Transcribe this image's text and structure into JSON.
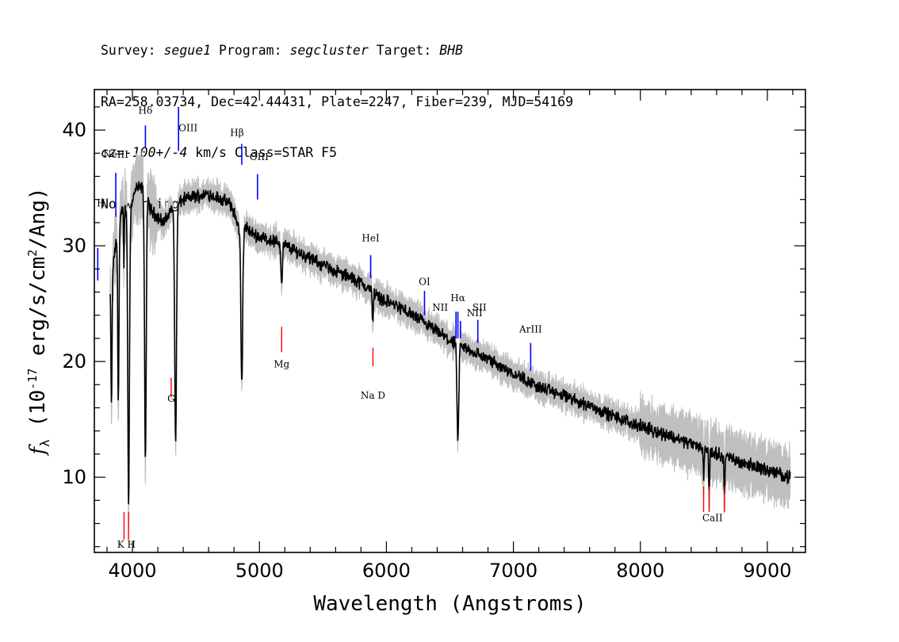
{
  "header": {
    "survey_label": "Survey: ",
    "survey_value": "segue1",
    "program_label": " Program: ",
    "program_value": "segcluster",
    "target_label": " Target: ",
    "target_value": "BHB",
    "line2": "RA=258.03734, Dec=42.44431, Plate=2247, Fiber=239, MJD=54169",
    "cz_label": "cz=",
    "cz_value": "-100+/-4",
    "cz_rest": " km/s Class=STAR F5",
    "line4": "No warnings."
  },
  "chart_data": {
    "type": "line",
    "xlabel": "Wavelength (Angstroms)",
    "ylabel_prefix": "f",
    "ylabel_sub": "λ",
    "ylabel_unit_pre": " (10",
    "ylabel_unit_exp": "-17",
    "ylabel_unit_mid": " erg/s/cm",
    "ylabel_unit_exp2": "2",
    "ylabel_unit_post": "/Ang)",
    "xlim": [
      3700,
      9300
    ],
    "ylim": [
      3.5,
      43.5
    ],
    "x_ticks": [
      4000,
      5000,
      6000,
      7000,
      8000,
      9000
    ],
    "x_tick_labels": [
      "4000",
      "5000",
      "6000",
      "7000",
      "8000",
      "9000"
    ],
    "y_ticks": [
      10,
      20,
      30,
      40
    ],
    "y_tick_labels": [
      "10",
      "20",
      "30",
      "40"
    ],
    "continuum": [
      [
        3825,
        26.5
      ],
      [
        3880,
        31.0
      ],
      [
        3920,
        33.0
      ],
      [
        3980,
        33.2
      ],
      [
        4030,
        35.0
      ],
      [
        4080,
        35.0
      ],
      [
        4150,
        33.0
      ],
      [
        4250,
        32.0
      ],
      [
        4300,
        33.0
      ],
      [
        4400,
        34.0
      ],
      [
        4500,
        34.3
      ],
      [
        4600,
        34.5
      ],
      [
        4700,
        34.0
      ],
      [
        4780,
        33.5
      ],
      [
        4840,
        31.5
      ],
      [
        4900,
        31.5
      ],
      [
        4950,
        31.0
      ],
      [
        5050,
        30.6
      ],
      [
        5150,
        30.3
      ],
      [
        5300,
        29.5
      ],
      [
        5450,
        28.6
      ],
      [
        5600,
        27.8
      ],
      [
        5750,
        27.1
      ],
      [
        5850,
        26.4
      ],
      [
        5950,
        25.5
      ],
      [
        6100,
        24.7
      ],
      [
        6250,
        23.7
      ],
      [
        6350,
        22.9
      ],
      [
        6450,
        22.2
      ],
      [
        6500,
        21.8
      ],
      [
        6650,
        21.0
      ],
      [
        6800,
        20.2
      ],
      [
        7000,
        19.0
      ],
      [
        7200,
        17.8
      ],
      [
        7400,
        17.0
      ],
      [
        7600,
        16.2
      ],
      [
        7800,
        15.2
      ],
      [
        8000,
        14.4
      ],
      [
        8200,
        13.7
      ],
      [
        8400,
        12.9
      ],
      [
        8600,
        12.0
      ],
      [
        8800,
        11.3
      ],
      [
        9000,
        10.6
      ],
      [
        9180,
        10.0
      ]
    ],
    "absorption_features": [
      {
        "center": 3835,
        "depth": 11.5,
        "width": 6
      },
      {
        "center": 3889,
        "depth": 14.5,
        "width": 7
      },
      {
        "center": 3933,
        "depth": 5.0,
        "width": 3
      },
      {
        "center": 3970,
        "depth": 25.5,
        "width": 9
      },
      {
        "center": 4102,
        "depth": 23.0,
        "width": 9
      },
      {
        "center": 4340,
        "depth": 20.5,
        "width": 10
      },
      {
        "center": 4861,
        "depth": 13.5,
        "width": 10
      },
      {
        "center": 5175,
        "depth": 3.5,
        "width": 8
      },
      {
        "center": 5892,
        "depth": 2.5,
        "width": 6
      },
      {
        "center": 6563,
        "depth": 8.5,
        "width": 10
      },
      {
        "center": 8498,
        "depth": 2.5,
        "width": 4
      },
      {
        "center": 8542,
        "depth": 3.5,
        "width": 5
      },
      {
        "center": 8662,
        "depth": 3.5,
        "width": 5
      }
    ],
    "emission_lines": [
      {
        "name": "H",
        "label_html": "H",
        "wavelength": 3727,
        "label_y": 33.4,
        "label_dx": 4,
        "y0": 29.8,
        "y1": 27.0
      },
      {
        "name": "NeIII",
        "label_html": "NeIII",
        "wavelength": 3869,
        "label_y": 37.6,
        "label_dx": 0,
        "y0": 36.3,
        "y1": 32.5
      },
      {
        "name": "Hdelta",
        "label_html": "Hδ",
        "wavelength": 4102,
        "label_y": 41.4,
        "label_dx": 0,
        "y0": 40.4,
        "y1": 38.5
      },
      {
        "name": "OIII",
        "label_html": "OIII",
        "wavelength": 4363,
        "label_y": 39.9,
        "label_dx": 12,
        "y0": 42.0,
        "y1": 38.2
      },
      {
        "name": "Hbeta",
        "label_html": "Hβ",
        "wavelength": 4861,
        "label_y": 39.5,
        "label_dx": -6,
        "y0": 38.8,
        "y1": 37.0
      },
      {
        "name": "OIII",
        "label_html": "OIII",
        "wavelength": 4985,
        "label_y": 37.4,
        "label_dx": 2,
        "y0": 36.2,
        "y1": 34.0
      },
      {
        "name": "HeI",
        "label_html": "HeI",
        "wavelength": 5876,
        "label_y": 30.4,
        "label_dx": 0,
        "y0": 29.2,
        "y1": 27.2
      },
      {
        "name": "OI",
        "label_html": "OI",
        "wavelength": 6300,
        "label_y": 26.6,
        "label_dx": 0,
        "y0": 26.1,
        "y1": 24.0
      },
      {
        "name": "NII",
        "label_html": "NII",
        "wavelength": 6548,
        "label_y": 24.4,
        "label_dx": -20,
        "y0": 24.3,
        "y1": 22.0
      },
      {
        "name": "Halpha",
        "label_html": "Hα",
        "wavelength": 6563,
        "label_y": 25.2,
        "label_dx": 0,
        "y0": 24.3,
        "y1": 22.0
      },
      {
        "name": "NII",
        "label_html": "NII",
        "wavelength": 6583,
        "label_y": 23.9,
        "label_dx": 18,
        "y0": 23.5,
        "y1": 22.0
      },
      {
        "name": "SII",
        "label_html": "SII",
        "wavelength": 6720,
        "label_y": 24.4,
        "label_dx": 2,
        "y0": 23.6,
        "y1": 21.6
      },
      {
        "name": "ArIII",
        "label_html": "ArIII",
        "wavelength": 7136,
        "label_y": 22.5,
        "label_dx": 0,
        "y0": 21.6,
        "y1": 19.2
      }
    ],
    "absorption_markers": [
      {
        "name": "KH",
        "label": "K H",
        "lines": [
          3934,
          3969
        ],
        "label_x": 3952,
        "label_y": 3.9,
        "y0": 7.0,
        "y1": 4.6
      },
      {
        "name": "G",
        "label": "G",
        "lines": [
          4305
        ],
        "label_x": 4305,
        "label_y": 16.5,
        "y0": 18.6,
        "y1": 16.9
      },
      {
        "name": "Mg",
        "label": "Mg",
        "lines": [
          5175
        ],
        "label_x": 5175,
        "label_y": 19.5,
        "y0": 23.0,
        "y1": 20.8
      },
      {
        "name": "NaD",
        "label": "Na  D",
        "lines": [
          5894
        ],
        "label_x": 5894,
        "label_y": 16.8,
        "y0": 21.2,
        "y1": 19.6
      },
      {
        "name": "CaII",
        "label": "CaII",
        "lines": [
          8498,
          8542,
          8662
        ],
        "label_x": 8568,
        "label_y": 6.2,
        "y0": 9.2,
        "y1": 7.0
      }
    ],
    "colors": {
      "flux": "#000000",
      "error": "#bfbfbf",
      "emission": "#0000ff",
      "absorption": "#ff0000",
      "axes": "#000000"
    }
  }
}
